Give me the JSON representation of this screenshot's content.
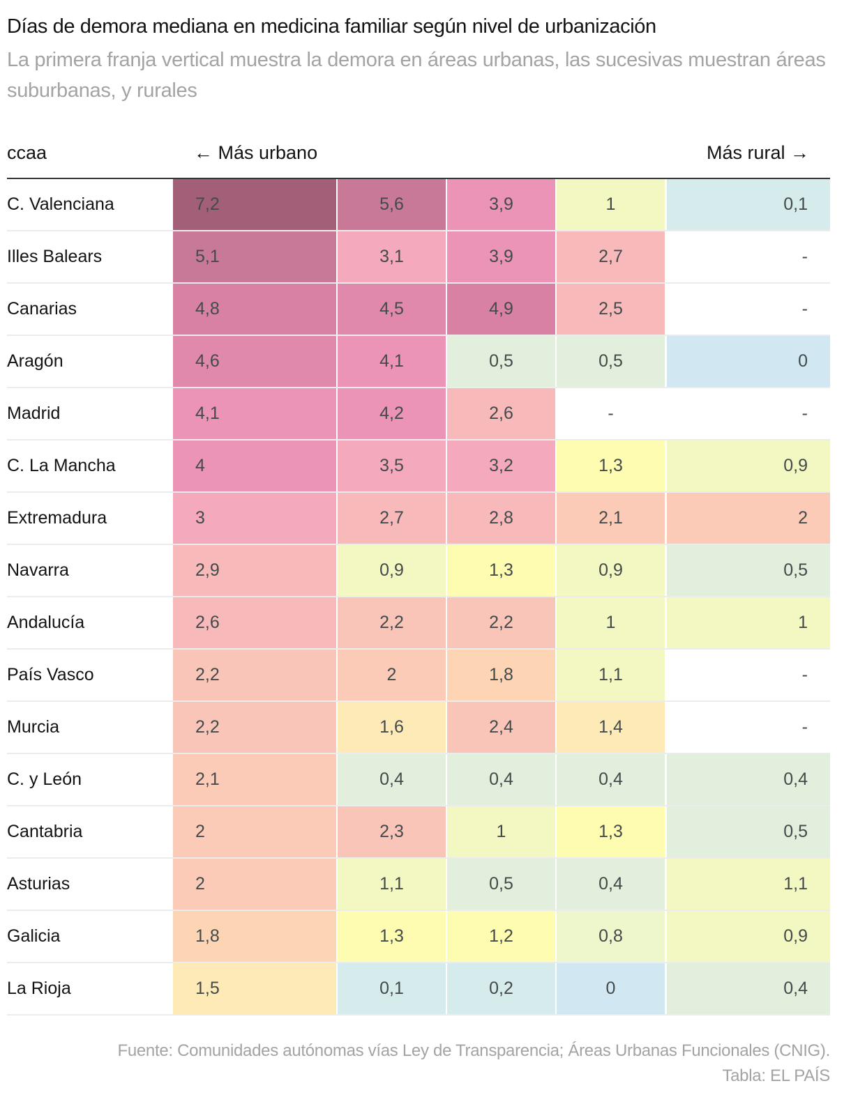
{
  "title": "Días de demora mediana en medicina familiar según nivel de urbanización",
  "subtitle": "La primera franja vertical muestra la demora en áreas urbanas, las sucesivas muestran áreas suburbanas, y rurales",
  "header": {
    "ccaa": "ccaa",
    "urban": "← Más urbano",
    "rural": "Más rural →"
  },
  "footer": {
    "source": "Fuente: Comunidades autónomas vías Ley de Transparencia; Áreas Urbanas Funcionales (CNIG).",
    "credit": "Tabla: EL PAÍS"
  },
  "color_scale": [
    {
      "min": 6.0,
      "color": "#a35e78"
    },
    {
      "min": 5.0,
      "color": "#c97998"
    },
    {
      "min": 4.7,
      "color": "#d981a4"
    },
    {
      "min": 4.3,
      "color": "#e189ad"
    },
    {
      "min": 3.9,
      "color": "#ec93b8"
    },
    {
      "min": 3.0,
      "color": "#f4a9bd"
    },
    {
      "min": 2.5,
      "color": "#f8b9bb"
    },
    {
      "min": 2.2,
      "color": "#f9c5b9"
    },
    {
      "min": 1.95,
      "color": "#fbcbb8"
    },
    {
      "min": 1.7,
      "color": "#fdd5b5"
    },
    {
      "min": 1.4,
      "color": "#fdeab6"
    },
    {
      "min": 1.15,
      "color": "#fefcb1"
    },
    {
      "min": 0.9,
      "color": "#f3f8c2"
    },
    {
      "min": 0.75,
      "color": "#eef6cb"
    },
    {
      "min": 0.3,
      "color": "#e1efdc"
    },
    {
      "min": 0.05,
      "color": "#d5ebec"
    },
    {
      "min": -1,
      "color": "#d1e8f3"
    }
  ],
  "chart_data": {
    "type": "heatmap",
    "title": "Días de demora mediana en medicina familiar según nivel de urbanización",
    "subtitle": "La primera franja vertical muestra la demora en áreas urbanas, las sucesivas muestran áreas suburbanas, y rurales",
    "row_label": "ccaa",
    "column_axis": {
      "left": "← Más urbano",
      "right": "Más rural →"
    },
    "rows": [
      {
        "ccaa": "C. Valenciana",
        "values": [
          "7,2",
          "5,6",
          "3,9",
          "1",
          "0,1"
        ]
      },
      {
        "ccaa": "Illes Balears",
        "values": [
          "5,1",
          "3,1",
          "3,9",
          "2,7",
          "-"
        ]
      },
      {
        "ccaa": "Canarias",
        "values": [
          "4,8",
          "4,5",
          "4,9",
          "2,5",
          "-"
        ]
      },
      {
        "ccaa": "Aragón",
        "values": [
          "4,6",
          "4,1",
          "0,5",
          "0,5",
          "0"
        ]
      },
      {
        "ccaa": "Madrid",
        "values": [
          "4,1",
          "4,2",
          "2,6",
          "-",
          "-"
        ]
      },
      {
        "ccaa": "C. La Mancha",
        "values": [
          "4",
          "3,5",
          "3,2",
          "1,3",
          "0,9"
        ]
      },
      {
        "ccaa": "Extremadura",
        "values": [
          "3",
          "2,7",
          "2,8",
          "2,1",
          "2"
        ]
      },
      {
        "ccaa": "Navarra",
        "values": [
          "2,9",
          "0,9",
          "1,3",
          "0,9",
          "0,5"
        ]
      },
      {
        "ccaa": "Andalucía",
        "values": [
          "2,6",
          "2,2",
          "2,2",
          "1",
          "1"
        ]
      },
      {
        "ccaa": "País Vasco",
        "values": [
          "2,2",
          "2",
          "1,8",
          "1,1",
          "-"
        ]
      },
      {
        "ccaa": "Murcia",
        "values": [
          "2,2",
          "1,6",
          "2,4",
          "1,4",
          "-"
        ]
      },
      {
        "ccaa": "C. y León",
        "values": [
          "2,1",
          "0,4",
          "0,4",
          "0,4",
          "0,4"
        ]
      },
      {
        "ccaa": "Cantabria",
        "values": [
          "2",
          "2,3",
          "1",
          "1,3",
          "0,5"
        ]
      },
      {
        "ccaa": "Asturias",
        "values": [
          "2",
          "1,1",
          "0,5",
          "0,4",
          "1,1"
        ]
      },
      {
        "ccaa": "Galicia",
        "values": [
          "1,8",
          "1,3",
          "1,2",
          "0,8",
          "0,9"
        ]
      },
      {
        "ccaa": "La Rioja",
        "values": [
          "1,5",
          "0,1",
          "0,2",
          "0",
          "0,4"
        ]
      }
    ]
  }
}
